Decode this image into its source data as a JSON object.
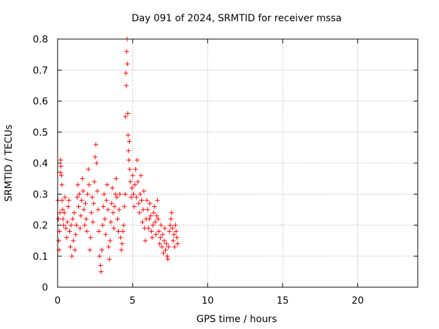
{
  "chart_data": {
    "type": "scatter",
    "title": "Day 091 of 2024, SRMTID for receiver mssa",
    "xlabel": "GPS time / hours",
    "ylabel": "SRMTID / TECUs",
    "xlim": [
      0,
      24
    ],
    "ylim": [
      0,
      0.8
    ],
    "x_ticks": [
      0,
      5,
      10,
      15,
      20
    ],
    "x_tick_labels": [
      "0",
      "5",
      "10",
      "15",
      "20"
    ],
    "y_ticks": [
      0,
      0.1,
      0.2,
      0.3,
      0.4,
      0.5,
      0.6,
      0.7,
      0.8
    ],
    "y_tick_labels": [
      "0",
      "0.1",
      "0.2",
      "0.3",
      "0.4",
      "0.5",
      "0.6",
      "0.7",
      "0.8"
    ],
    "grid": true,
    "marker": "+",
    "colors": {
      "points": "#ff0000",
      "grid": "#a0a0a0",
      "axes": "#000000"
    },
    "series": [
      {
        "name": "SRMTID",
        "points": [
          [
            0.02,
            0.28
          ],
          [
            0.05,
            0.22
          ],
          [
            0.08,
            0.15
          ],
          [
            0.1,
            0.12
          ],
          [
            0.12,
            0.18
          ],
          [
            0.15,
            0.24
          ],
          [
            0.18,
            0.37
          ],
          [
            0.2,
            0.41
          ],
          [
            0.22,
            0.39
          ],
          [
            0.25,
            0.36
          ],
          [
            0.28,
            0.33
          ],
          [
            0.3,
            0.28
          ],
          [
            0.33,
            0.25
          ],
          [
            0.36,
            0.22
          ],
          [
            0.4,
            0.2
          ],
          [
            0.45,
            0.24
          ],
          [
            0.5,
            0.29
          ],
          [
            0.55,
            0.19
          ],
          [
            0.6,
            0.16
          ],
          [
            0.65,
            0.21
          ],
          [
            0.7,
            0.26
          ],
          [
            0.75,
            0.28
          ],
          [
            0.8,
            0.18
          ],
          [
            0.85,
            0.13
          ],
          [
            0.9,
            0.2
          ],
          [
            0.95,
            0.1
          ],
          [
            1.0,
            0.22
          ],
          [
            1.05,
            0.15
          ],
          [
            1.1,
            0.24
          ],
          [
            1.15,
            0.12
          ],
          [
            1.2,
            0.17
          ],
          [
            1.25,
            0.2
          ],
          [
            1.3,
            0.29
          ],
          [
            1.35,
            0.33
          ],
          [
            1.4,
            0.26
          ],
          [
            1.45,
            0.3
          ],
          [
            1.5,
            0.19
          ],
          [
            1.55,
            0.23
          ],
          [
            1.6,
            0.28
          ],
          [
            1.65,
            0.35
          ],
          [
            1.7,
            0.31
          ],
          [
            1.75,
            0.25
          ],
          [
            1.8,
            0.2
          ],
          [
            1.85,
            0.27
          ],
          [
            1.9,
            0.22
          ],
          [
            1.95,
            0.18
          ],
          [
            2.0,
            0.3
          ],
          [
            2.05,
            0.38
          ],
          [
            2.1,
            0.33
          ],
          [
            2.15,
            0.12
          ],
          [
            2.2,
            0.16
          ],
          [
            2.25,
            0.24
          ],
          [
            2.3,
            0.29
          ],
          [
            2.35,
            0.21
          ],
          [
            2.4,
            0.27
          ],
          [
            2.45,
            0.34
          ],
          [
            2.5,
            0.42
          ],
          [
            2.55,
            0.46
          ],
          [
            2.6,
            0.4
          ],
          [
            2.65,
            0.31
          ],
          [
            2.7,
            0.25
          ],
          [
            2.75,
            0.18
          ],
          [
            2.8,
            0.1
          ],
          [
            2.85,
            0.07
          ],
          [
            2.9,
            0.05
          ],
          [
            2.95,
            0.12
          ],
          [
            3.0,
            0.2
          ],
          [
            3.05,
            0.26
          ],
          [
            3.1,
            0.3
          ],
          [
            3.15,
            0.22
          ],
          [
            3.2,
            0.17
          ],
          [
            3.25,
            0.28
          ],
          [
            3.3,
            0.33
          ],
          [
            3.35,
            0.25
          ],
          [
            3.4,
            0.13
          ],
          [
            3.45,
            0.09
          ],
          [
            3.5,
            0.15
          ],
          [
            3.55,
            0.21
          ],
          [
            3.6,
            0.27
          ],
          [
            3.65,
            0.32
          ],
          [
            3.7,
            0.24
          ],
          [
            3.75,
            0.19
          ],
          [
            3.8,
            0.26
          ],
          [
            3.85,
            0.3
          ],
          [
            3.9,
            0.35
          ],
          [
            3.95,
            0.29
          ],
          [
            4.0,
            0.22
          ],
          [
            4.05,
            0.18
          ],
          [
            4.1,
            0.25
          ],
          [
            4.15,
            0.3
          ],
          [
            4.2,
            0.16
          ],
          [
            4.25,
            0.12
          ],
          [
            4.3,
            0.14
          ],
          [
            4.35,
            0.18
          ],
          [
            4.4,
            0.2
          ],
          [
            4.45,
            0.26
          ],
          [
            4.5,
            0.3
          ],
          [
            4.52,
            0.55
          ],
          [
            4.55,
            0.69
          ],
          [
            4.58,
            0.65
          ],
          [
            4.6,
            0.76
          ],
          [
            4.62,
            0.8
          ],
          [
            4.65,
            0.72
          ],
          [
            4.68,
            0.56
          ],
          [
            4.7,
            0.49
          ],
          [
            4.72,
            0.44
          ],
          [
            4.75,
            0.41
          ],
          [
            4.78,
            0.47
          ],
          [
            4.8,
            0.38
          ],
          [
            4.85,
            0.34
          ],
          [
            4.9,
            0.29
          ],
          [
            4.95,
            0.32
          ],
          [
            5.0,
            0.36
          ],
          [
            5.05,
            0.3
          ],
          [
            5.1,
            0.26
          ],
          [
            5.15,
            0.33
          ],
          [
            5.2,
            0.38
          ],
          [
            5.25,
            0.29
          ],
          [
            5.3,
            0.41
          ],
          [
            5.35,
            0.34
          ],
          [
            5.4,
            0.27
          ],
          [
            5.45,
            0.24
          ],
          [
            5.5,
            0.3
          ],
          [
            5.55,
            0.36
          ],
          [
            5.6,
            0.28
          ],
          [
            5.65,
            0.21
          ],
          [
            5.7,
            0.25
          ],
          [
            5.75,
            0.31
          ],
          [
            5.8,
            0.19
          ],
          [
            5.85,
            0.15
          ],
          [
            5.9,
            0.22
          ],
          [
            5.95,
            0.28
          ],
          [
            6.0,
            0.25
          ],
          [
            6.05,
            0.19
          ],
          [
            6.1,
            0.22
          ],
          [
            6.15,
            0.27
          ],
          [
            6.2,
            0.23
          ],
          [
            6.25,
            0.18
          ],
          [
            6.3,
            0.16
          ],
          [
            6.35,
            0.2
          ],
          [
            6.4,
            0.24
          ],
          [
            6.45,
            0.26
          ],
          [
            6.5,
            0.21
          ],
          [
            6.55,
            0.17
          ],
          [
            6.6,
            0.23
          ],
          [
            6.65,
            0.28
          ],
          [
            6.7,
            0.22
          ],
          [
            6.75,
            0.18
          ],
          [
            6.8,
            0.14
          ],
          [
            6.85,
            0.16
          ],
          [
            6.9,
            0.2
          ],
          [
            6.95,
            0.13
          ],
          [
            7.0,
            0.17
          ],
          [
            7.05,
            0.11
          ],
          [
            7.1,
            0.15
          ],
          [
            7.15,
            0.19
          ],
          [
            7.2,
            0.12
          ],
          [
            7.25,
            0.14
          ],
          [
            7.3,
            0.1
          ],
          [
            7.35,
            0.09
          ],
          [
            7.4,
            0.13
          ],
          [
            7.45,
            0.18
          ],
          [
            7.5,
            0.2
          ],
          [
            7.55,
            0.22
          ],
          [
            7.6,
            0.24
          ],
          [
            7.65,
            0.19
          ],
          [
            7.7,
            0.15
          ],
          [
            7.75,
            0.17
          ],
          [
            7.8,
            0.13
          ],
          [
            7.85,
            0.2
          ],
          [
            7.9,
            0.18
          ],
          [
            7.95,
            0.16
          ],
          [
            8.0,
            0.14
          ]
        ]
      }
    ]
  }
}
